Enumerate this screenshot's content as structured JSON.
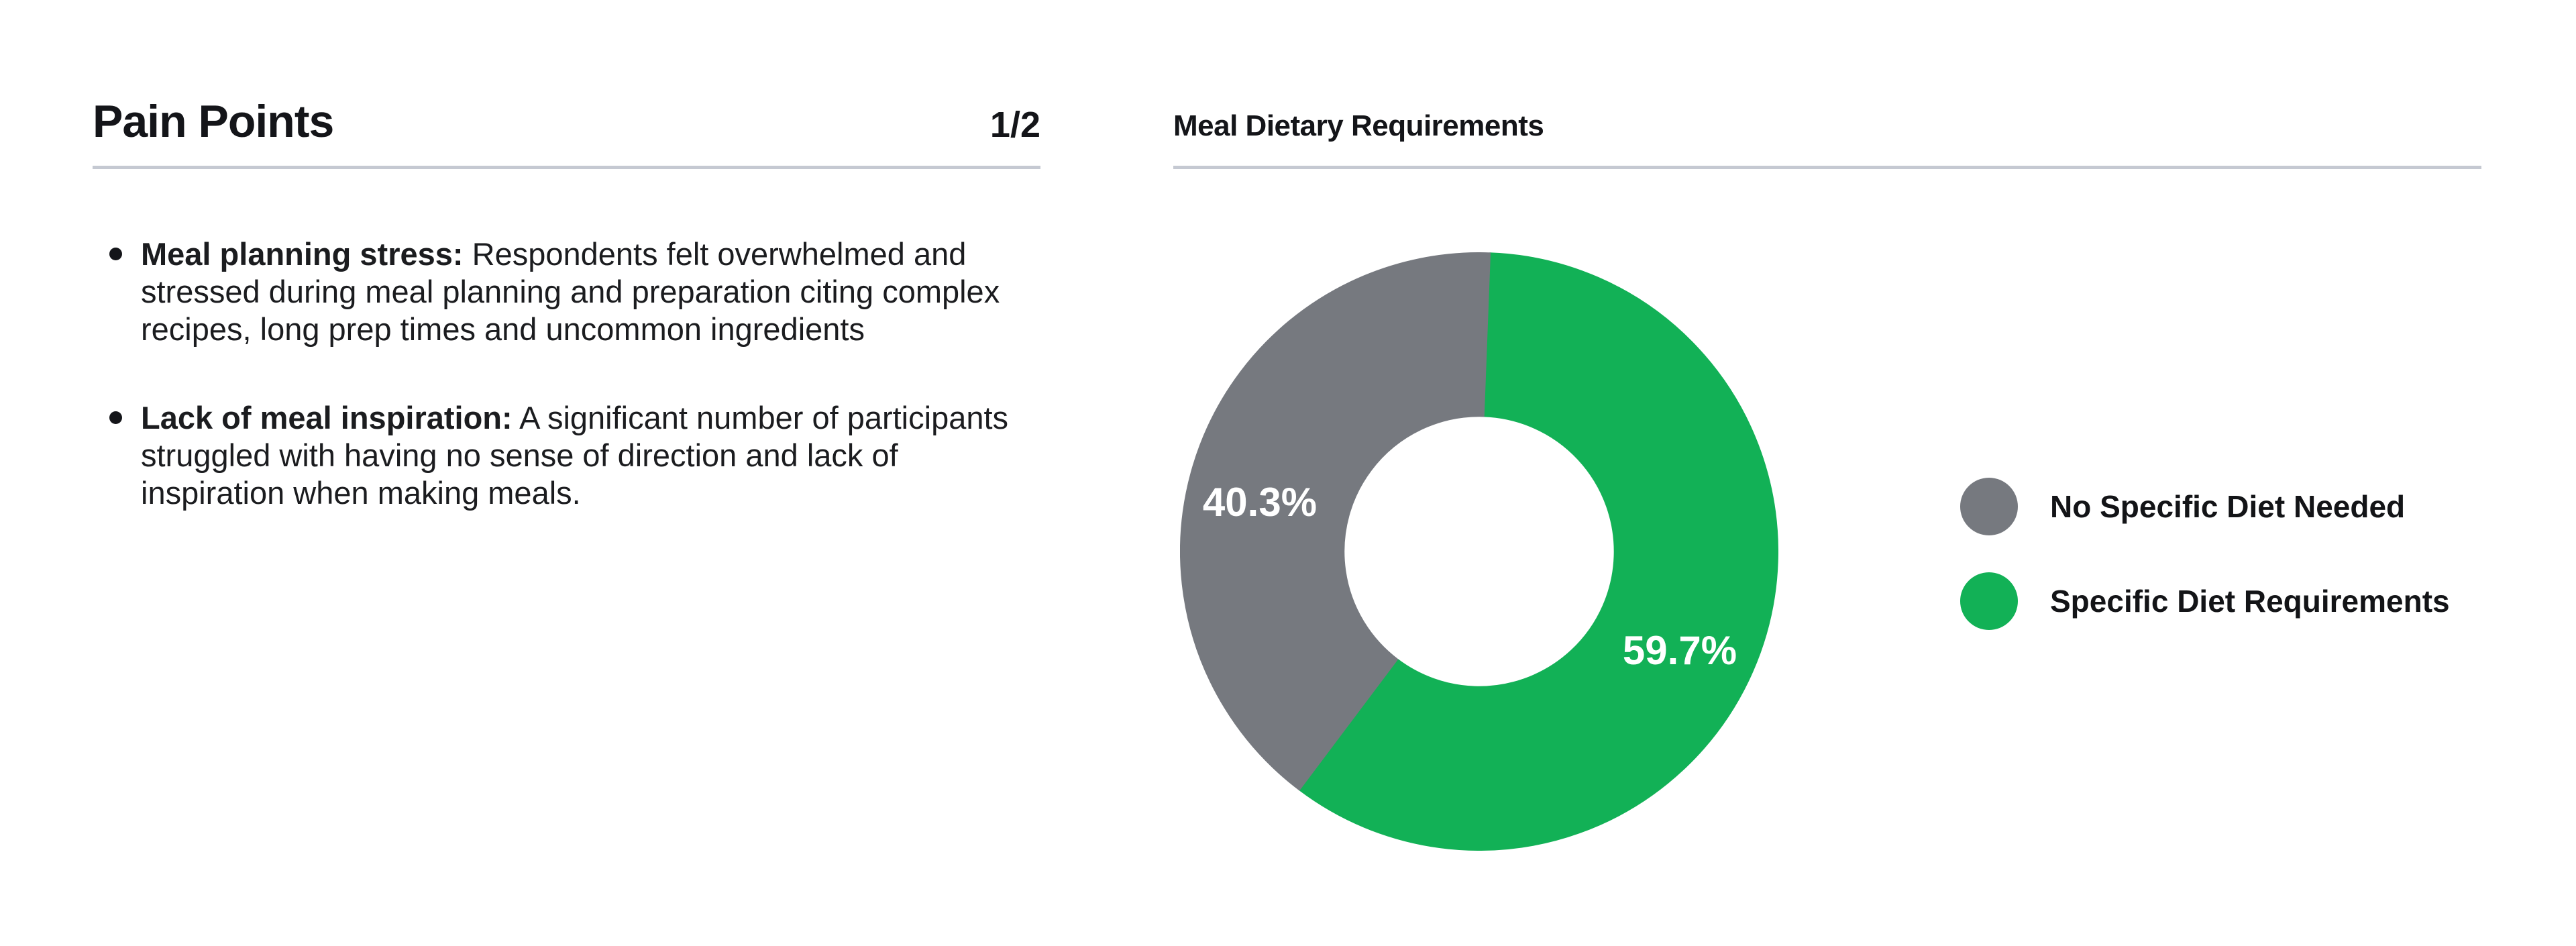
{
  "left_panel": {
    "title": "Pain Points",
    "page_indicator": "1/2",
    "bullets": [
      {
        "lead": "Meal planning stress:",
        "text": " Respondents felt overwhelmed and stressed during meal planning and preparation citing complex recipes, long prep times and uncommon ingredients"
      },
      {
        "lead": "Lack of meal inspiration:",
        "text": " A significant number of participants struggled with having no sense of direction and lack of inspiration when making meals."
      }
    ]
  },
  "chart_panel": {
    "title": "Meal Dietary Requirements"
  },
  "chart_data": {
    "type": "pie",
    "variant": "donut",
    "title": "Meal Dietary Requirements",
    "direction": "clockwise",
    "start_angle_from_top_deg": 0,
    "inner_radius_ratio": 0.45,
    "slices": [
      {
        "label": "Specific Diet Requirements",
        "value": 59.7,
        "display": "59.7%",
        "color": "#12B156"
      },
      {
        "label": "No Specific Diet Needed",
        "value": 40.3,
        "display": "40.3%",
        "color": "#76797F"
      }
    ],
    "legend": [
      {
        "label": "No Specific Diet Needed",
        "color": "#76797F"
      },
      {
        "label": "Specific Diet Requirements",
        "color": "#12B156"
      }
    ],
    "legend_position": "right",
    "data_label_color": "#FFFFFF"
  },
  "colors": {
    "background": "#FFFFFF",
    "divider": "#C5C9D2",
    "text": "#17181B",
    "accent_green": "#12B156",
    "neutral_gray": "#76797F"
  }
}
